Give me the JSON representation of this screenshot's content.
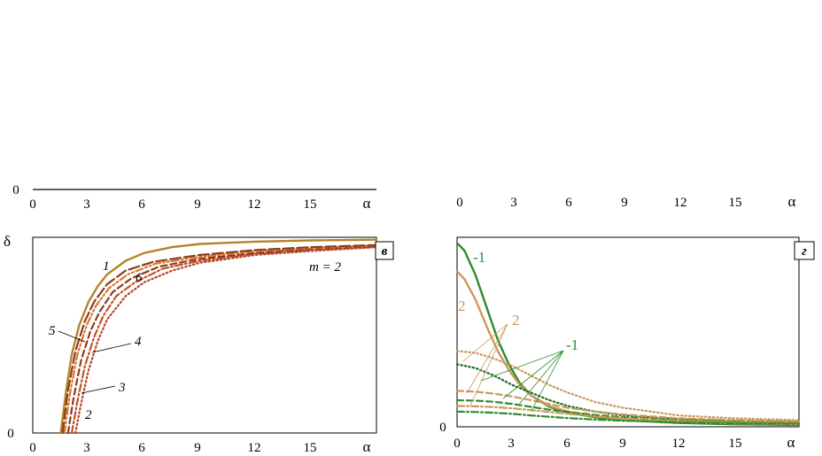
{
  "colors": {
    "gold": "#b5832a",
    "orange": "#d9782a",
    "brown": "#8b3c1c",
    "red": "#c0522b",
    "darkred": "#b5442a",
    "green": "#2e8b2e",
    "darkgreen": "#1e6b1e",
    "tan": "#c99a5a"
  },
  "chart_data": [
    {
      "id": "top-left",
      "type": "line",
      "x_axis_symbol": "α",
      "x_ticks": [
        "0",
        "3",
        "6",
        "9",
        "12",
        "15"
      ],
      "y_ticks": [
        "0"
      ],
      "xlim": [
        0,
        18.5
      ],
      "series": []
    },
    {
      "id": "top-right",
      "type": "line",
      "x_axis_symbol": "α",
      "x_ticks": [
        "0",
        "3",
        "6",
        "9",
        "12",
        "15"
      ],
      "xlim": [
        0,
        18.5
      ],
      "series": []
    },
    {
      "id": "c",
      "type": "line",
      "panel_letter": "в",
      "y_axis_symbol": "δ",
      "x_axis_symbol": "α",
      "x_ticks": [
        "0",
        "3",
        "6",
        "9",
        "12",
        "15"
      ],
      "y_ticks": [
        "0"
      ],
      "xlim": [
        0,
        18.5
      ],
      "ylim": [
        0,
        1
      ],
      "annotation": "m = 2",
      "curve_labels": [
        "1",
        "2",
        "3",
        "4",
        "5",
        "6"
      ],
      "series": [
        {
          "name": "1",
          "style": "solid",
          "color": "gold",
          "x": [
            1.5,
            1.8,
            2.1,
            2.5,
            3.0,
            3.5,
            4.0,
            5.0,
            6.0,
            7.5,
            9.0,
            12.0,
            15.0,
            18.5
          ],
          "y": [
            0.0,
            0.22,
            0.4,
            0.55,
            0.67,
            0.75,
            0.81,
            0.88,
            0.92,
            0.95,
            0.966,
            0.978,
            0.984,
            0.988
          ]
        },
        {
          "name": "2",
          "style": "dotted",
          "color": "darkred",
          "x": [
            2.3,
            2.6,
            3.0,
            3.5,
            4.0,
            5.0,
            6.0,
            7.5,
            9.0,
            12.0,
            15.0,
            18.5
          ],
          "y": [
            0.0,
            0.15,
            0.32,
            0.47,
            0.58,
            0.7,
            0.77,
            0.83,
            0.87,
            0.91,
            0.93,
            0.95
          ]
        },
        {
          "name": "3",
          "style": "dash-dot",
          "color": "red",
          "x": [
            2.1,
            2.4,
            2.8,
            3.3,
            3.8,
            4.5,
            5.5,
            7.0,
            9.0,
            12.0,
            15.0,
            18.5
          ],
          "y": [
            0.0,
            0.16,
            0.34,
            0.49,
            0.6,
            0.7,
            0.77,
            0.84,
            0.88,
            0.915,
            0.935,
            0.95
          ]
        },
        {
          "name": "4",
          "style": "dashed",
          "color": "brown",
          "x": [
            1.9,
            2.2,
            2.6,
            3.1,
            3.6,
            4.3,
            5.3,
            6.8,
            9.0,
            12.0,
            15.0,
            18.5
          ],
          "y": [
            0.0,
            0.18,
            0.37,
            0.52,
            0.62,
            0.72,
            0.79,
            0.85,
            0.89,
            0.92,
            0.94,
            0.955
          ]
        },
        {
          "name": "5",
          "style": "dash-dot-dot",
          "color": "orange",
          "x": [
            1.7,
            2.0,
            2.4,
            2.9,
            3.4,
            4.1,
            5.1,
            6.6,
            9.0,
            12.0,
            15.0,
            18.5
          ],
          "y": [
            0.0,
            0.2,
            0.4,
            0.55,
            0.65,
            0.74,
            0.81,
            0.865,
            0.9,
            0.93,
            0.945,
            0.958
          ]
        },
        {
          "name": "6",
          "style": "long-dash",
          "color": "brown",
          "x": [
            1.6,
            1.9,
            2.3,
            2.8,
            3.3,
            4.0,
            5.0,
            6.5,
            9.0,
            12.0,
            15.0,
            18.5
          ],
          "y": [
            0.0,
            0.22,
            0.42,
            0.57,
            0.67,
            0.76,
            0.83,
            0.875,
            0.91,
            0.935,
            0.95,
            0.96
          ]
        }
      ]
    },
    {
      "id": "d",
      "type": "line",
      "panel_letter": "г",
      "x_axis_symbol": "α",
      "x_ticks": [
        "0",
        "3",
        "6",
        "9",
        "12",
        "15"
      ],
      "y_ticks": [
        "0"
      ],
      "xlim": [
        0,
        18.5
      ],
      "ylim": [
        0,
        1
      ],
      "curve_labels": [
        {
          "text": "-1",
          "color": "green"
        },
        {
          "text": "2",
          "color": "tan"
        },
        {
          "text": "2",
          "color": "tan"
        },
        {
          "text": "-1",
          "color": "green"
        }
      ],
      "series": [
        {
          "name": "-1",
          "style": "solid",
          "color": "green",
          "x": [
            0,
            0.4,
            1.0,
            1.6,
            2.2,
            2.8,
            3.4,
            4.0,
            5.0,
            6.0,
            7.5,
            9.0,
            12.0,
            15.0,
            18.5
          ],
          "y": [
            0.97,
            0.93,
            0.8,
            0.63,
            0.46,
            0.33,
            0.23,
            0.165,
            0.105,
            0.075,
            0.05,
            0.035,
            0.02,
            0.013,
            0.01
          ]
        },
        {
          "name": "2",
          "style": "solid",
          "color": "tan",
          "x": [
            0,
            0.4,
            1.0,
            1.6,
            2.2,
            2.8,
            3.4,
            4.0,
            5.0,
            6.0,
            7.5,
            9.0,
            12.0,
            15.0,
            18.5
          ],
          "y": [
            0.82,
            0.78,
            0.67,
            0.53,
            0.4,
            0.3,
            0.22,
            0.165,
            0.11,
            0.08,
            0.055,
            0.04,
            0.025,
            0.018,
            0.014
          ]
        },
        {
          "name": "2",
          "style": "dotted",
          "color": "tan",
          "x": [
            0,
            1.0,
            2.0,
            3.0,
            4.0,
            5.0,
            6.0,
            7.5,
            9.0,
            12.0,
            15.0,
            18.5
          ],
          "y": [
            0.4,
            0.39,
            0.36,
            0.32,
            0.27,
            0.22,
            0.18,
            0.13,
            0.1,
            0.06,
            0.045,
            0.035
          ]
        },
        {
          "name": "-1",
          "style": "dotted",
          "color": "darkgreen",
          "x": [
            0,
            1.0,
            2.0,
            3.0,
            4.0,
            5.0,
            6.0,
            7.5,
            9.0,
            12.0,
            15.0,
            18.5
          ],
          "y": [
            0.33,
            0.31,
            0.27,
            0.22,
            0.18,
            0.14,
            0.11,
            0.08,
            0.06,
            0.04,
            0.03,
            0.025
          ]
        },
        {
          "name": "2",
          "style": "dashed",
          "color": "tan",
          "x": [
            0,
            1.0,
            2.0,
            3.0,
            4.0,
            5.0,
            6.0,
            7.5,
            9.0,
            12.0,
            15.0,
            18.5
          ],
          "y": [
            0.19,
            0.185,
            0.175,
            0.16,
            0.14,
            0.12,
            0.1,
            0.08,
            0.065,
            0.045,
            0.035,
            0.03
          ]
        },
        {
          "name": "-1",
          "style": "dashed",
          "color": "green",
          "x": [
            0,
            1.0,
            2.0,
            3.0,
            4.0,
            5.0,
            6.0,
            7.5,
            9.0,
            12.0,
            15.0,
            18.5
          ],
          "y": [
            0.14,
            0.138,
            0.132,
            0.12,
            0.105,
            0.09,
            0.078,
            0.062,
            0.05,
            0.035,
            0.027,
            0.022
          ]
        },
        {
          "name": "2",
          "style": "dash-dot",
          "color": "tan",
          "x": [
            0,
            1.0,
            2.0,
            3.0,
            4.0,
            5.0,
            6.0,
            7.5,
            9.0,
            12.0,
            15.0,
            18.5
          ],
          "y": [
            0.11,
            0.108,
            0.104,
            0.097,
            0.088,
            0.078,
            0.068,
            0.055,
            0.045,
            0.032,
            0.025,
            0.021
          ]
        },
        {
          "name": "-1",
          "style": "dash-dot",
          "color": "green",
          "x": [
            0,
            1.0,
            2.0,
            3.0,
            4.0,
            5.0,
            6.0,
            7.5,
            9.0,
            12.0,
            15.0,
            18.5
          ],
          "y": [
            0.08,
            0.078,
            0.074,
            0.068,
            0.06,
            0.053,
            0.046,
            0.038,
            0.032,
            0.024,
            0.019,
            0.016
          ]
        }
      ]
    }
  ]
}
